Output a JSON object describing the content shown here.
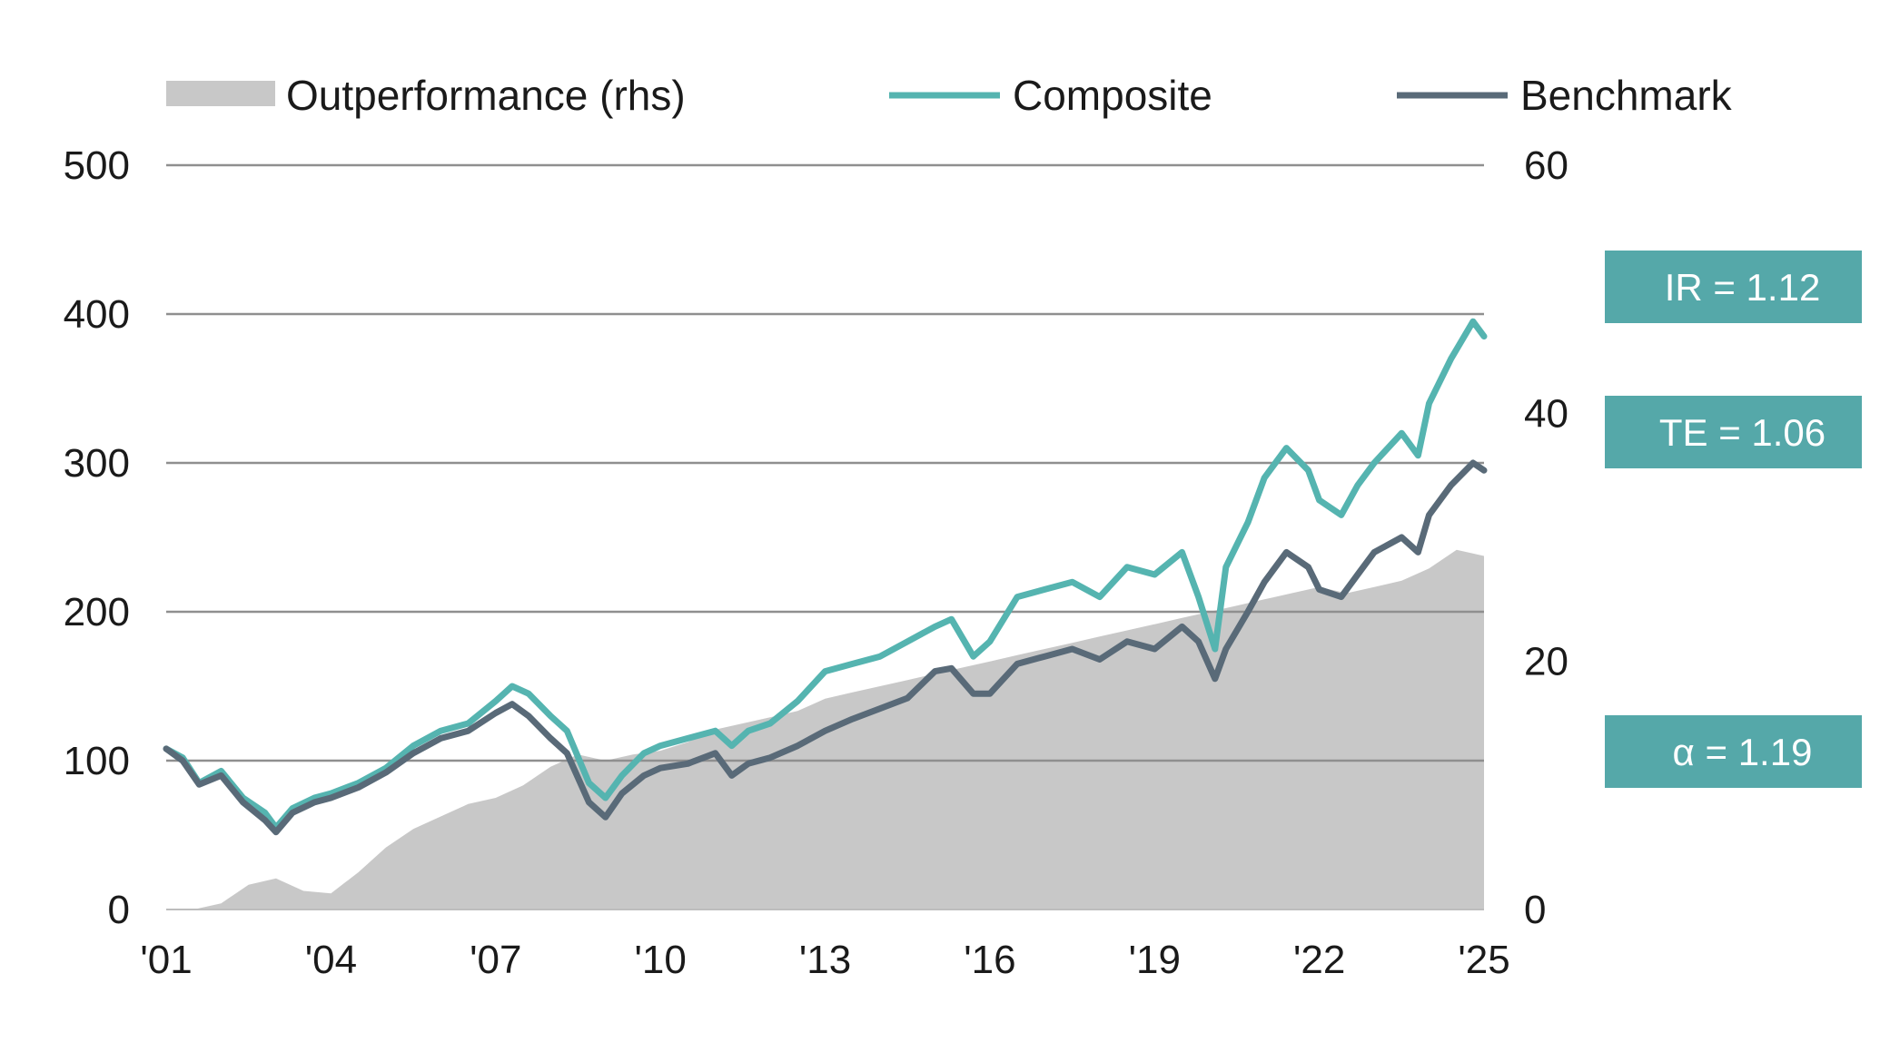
{
  "chart_data": {
    "type": "line",
    "title": "",
    "xlabel": "",
    "ylabel": "",
    "xlim": [
      2001.0,
      2025.0
    ],
    "ylim": [
      0,
      500
    ],
    "ylim_right": [
      0,
      60
    ],
    "x_ticks": [
      2001,
      2004,
      2007,
      2010,
      2013,
      2016,
      2019,
      2022,
      2025
    ],
    "x_tick_labels": [
      "'01",
      "'04",
      "'07",
      "'10",
      "'13",
      "'16",
      "'19",
      "'22",
      "'25"
    ],
    "y_ticks": [
      0,
      100,
      200,
      300,
      400,
      500
    ],
    "y_tick_labels": [
      "0",
      "100",
      "200",
      "300",
      "400",
      "500"
    ],
    "y_right_ticks": [
      0,
      20,
      40,
      60
    ],
    "y_right_tick_labels": [
      "0",
      "20",
      "40",
      "60"
    ],
    "grid": "horizontal",
    "legend_position": "top",
    "legend": [
      {
        "label": "Outperformance (rhs)",
        "kind": "area",
        "color": "#c8c8c8"
      },
      {
        "label": "Composite",
        "kind": "line",
        "color": "#55b4b0"
      },
      {
        "label": "Benchmark",
        "kind": "line",
        "color": "#596a78"
      }
    ],
    "annotations": [
      {
        "text": "IR = 1.12",
        "color": "#55a8a9"
      },
      {
        "text": "TE = 1.06",
        "color": "#55a8a9"
      },
      {
        "text": "α = 1.19",
        "color": "#55a8a9"
      }
    ],
    "series": [
      {
        "name": "Composite",
        "axis": "left",
        "type": "line",
        "color": "#55b4b0",
        "x": [
          2001.0,
          2001.3,
          2001.6,
          2002.0,
          2002.4,
          2002.8,
          2003.0,
          2003.3,
          2003.7,
          2004.0,
          2004.5,
          2005.0,
          2005.5,
          2006.0,
          2006.5,
          2007.0,
          2007.3,
          2007.6,
          2008.0,
          2008.3,
          2008.7,
          2009.0,
          2009.3,
          2009.7,
          2010.0,
          2010.5,
          2011.0,
          2011.3,
          2011.6,
          2012.0,
          2012.5,
          2013.0,
          2013.5,
          2014.0,
          2014.5,
          2015.0,
          2015.3,
          2015.7,
          2016.0,
          2016.5,
          2017.0,
          2017.5,
          2018.0,
          2018.5,
          2019.0,
          2019.5,
          2019.8,
          2020.1,
          2020.3,
          2020.7,
          2021.0,
          2021.4,
          2021.8,
          2022.0,
          2022.4,
          2022.7,
          2023.0,
          2023.5,
          2023.8,
          2024.0,
          2024.4,
          2024.8,
          2025.0
        ],
        "values": [
          108,
          102,
          85,
          93,
          75,
          65,
          55,
          68,
          75,
          78,
          85,
          95,
          110,
          120,
          125,
          140,
          150,
          145,
          130,
          120,
          85,
          75,
          90,
          105,
          110,
          115,
          120,
          110,
          120,
          125,
          140,
          160,
          165,
          170,
          180,
          190,
          195,
          170,
          180,
          210,
          215,
          220,
          210,
          230,
          225,
          240,
          210,
          175,
          230,
          260,
          290,
          310,
          295,
          275,
          265,
          285,
          300,
          320,
          305,
          340,
          370,
          395,
          385
        ]
      },
      {
        "name": "Benchmark",
        "axis": "left",
        "type": "line",
        "color": "#596a78",
        "x": [
          2001.0,
          2001.3,
          2001.6,
          2002.0,
          2002.4,
          2002.8,
          2003.0,
          2003.3,
          2003.7,
          2004.0,
          2004.5,
          2005.0,
          2005.5,
          2006.0,
          2006.5,
          2007.0,
          2007.3,
          2007.6,
          2008.0,
          2008.3,
          2008.7,
          2009.0,
          2009.3,
          2009.7,
          2010.0,
          2010.5,
          2011.0,
          2011.3,
          2011.6,
          2012.0,
          2012.5,
          2013.0,
          2013.5,
          2014.0,
          2014.5,
          2015.0,
          2015.3,
          2015.7,
          2016.0,
          2016.5,
          2017.0,
          2017.5,
          2018.0,
          2018.5,
          2019.0,
          2019.5,
          2019.8,
          2020.1,
          2020.3,
          2020.7,
          2021.0,
          2021.4,
          2021.8,
          2022.0,
          2022.4,
          2022.7,
          2023.0,
          2023.5,
          2023.8,
          2024.0,
          2024.4,
          2024.8,
          2025.0
        ],
        "values": [
          108,
          100,
          84,
          90,
          72,
          60,
          52,
          65,
          72,
          75,
          82,
          92,
          105,
          115,
          120,
          132,
          138,
          130,
          115,
          105,
          72,
          62,
          78,
          90,
          95,
          98,
          105,
          90,
          98,
          102,
          110,
          120,
          128,
          135,
          142,
          160,
          162,
          145,
          145,
          165,
          170,
          175,
          168,
          180,
          175,
          190,
          180,
          155,
          175,
          200,
          220,
          240,
          230,
          215,
          210,
          225,
          240,
          250,
          240,
          265,
          285,
          300,
          295
        ]
      },
      {
        "name": "Outperformance (rhs)",
        "axis": "right",
        "type": "area",
        "color": "#c8c8c8",
        "x": [
          2001.0,
          2001.5,
          2002.0,
          2002.5,
          2003.0,
          2003.5,
          2004.0,
          2004.5,
          2005.0,
          2005.5,
          2006.0,
          2006.5,
          2007.0,
          2007.5,
          2008.0,
          2008.5,
          2009.0,
          2009.5,
          2010.0,
          2010.5,
          2011.0,
          2011.5,
          2012.0,
          2012.5,
          2013.0,
          2013.5,
          2014.0,
          2014.5,
          2015.0,
          2015.5,
          2016.0,
          2016.5,
          2017.0,
          2017.5,
          2018.0,
          2018.5,
          2019.0,
          2019.5,
          2020.0,
          2020.5,
          2021.0,
          2021.5,
          2022.0,
          2022.5,
          2023.0,
          2023.5,
          2024.0,
          2024.5,
          2025.0
        ],
        "values": [
          0,
          0,
          0.5,
          2.0,
          2.5,
          1.5,
          1.3,
          3.0,
          5.0,
          6.5,
          7.5,
          8.5,
          9.0,
          10.0,
          11.5,
          12.5,
          12.0,
          12.5,
          12.8,
          13.5,
          14.5,
          15.0,
          15.5,
          16.0,
          17.0,
          17.5,
          18.0,
          18.5,
          19.0,
          19.5,
          20.0,
          20.5,
          21.0,
          21.5,
          22.0,
          22.5,
          23.0,
          23.5,
          24.0,
          24.5,
          25.0,
          25.5,
          26.0,
          25.5,
          26.0,
          26.5,
          27.5,
          29.0,
          28.5
        ]
      }
    ]
  }
}
